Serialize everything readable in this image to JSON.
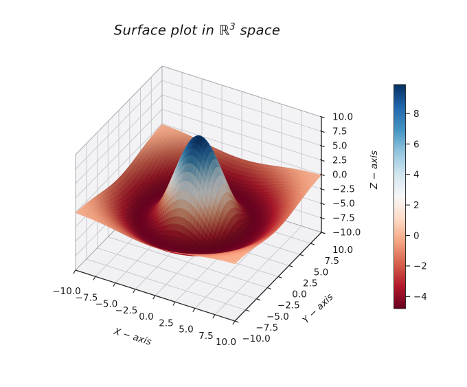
{
  "figure": {
    "background": "#ffffff"
  },
  "title": {
    "prefix": "Surface plot in ",
    "set_symbol": "ℝ",
    "exponent": "3",
    "suffix": " space",
    "full": "Surface plot in ℝ³ space"
  },
  "chart_data": {
    "type": "surface",
    "title": "Surface plot in ℝ³ space",
    "xlabel": "X − axis",
    "ylabel": "Y − axis",
    "zlabel": "Z − axis",
    "x_range": [
      -10,
      10
    ],
    "y_range": [
      -10,
      10
    ],
    "z_range": [
      -10,
      10
    ],
    "x_ticks": [
      -10,
      -7.5,
      -5,
      -2.5,
      0,
      2.5,
      5,
      7.5,
      10
    ],
    "x_tick_labels": [
      "−10.0",
      "−7.5",
      "−5.0",
      "−2.5",
      "0.0",
      "2.5",
      "5.0",
      "7.5",
      "10.0"
    ],
    "y_ticks": [
      -10,
      -7.5,
      -5,
      -2.5,
      0,
      2.5,
      5,
      7.5,
      10
    ],
    "y_tick_labels": [
      "−10.0",
      "−7.5",
      "−5.0",
      "−2.5",
      "0.0",
      "2.5",
      "5.0",
      "7.5",
      "10.0"
    ],
    "z_ticks": [
      -10,
      -7.5,
      -5,
      -2.5,
      0,
      2.5,
      5,
      7.5,
      10
    ],
    "z_tick_labels": [
      "−10.0",
      "−7.5",
      "−5.0",
      "−2.5",
      "0.0",
      "2.5",
      "5.0",
      "7.5",
      "10.0"
    ],
    "grid": true,
    "view": {
      "elev": 30,
      "azim": -60
    },
    "surface": {
      "model": "radial ricker (mexican-hat) peak centered at origin",
      "formula": "z(r) = A·(1 − r²/(2σ²))·exp(−r²/(kσ²)),  r² = x² + y²",
      "amplitude": 9.9,
      "sigma": 2.55,
      "k": 4.2,
      "z_peak": 9.9,
      "z_trough": -4.75,
      "grid_points": 56
    },
    "colormap": {
      "name": "RdBu",
      "stops": [
        "#67001f",
        "#b2182b",
        "#d6604d",
        "#f4a582",
        "#fddbc7",
        "#f7f7f7",
        "#d1e5f0",
        "#92c5de",
        "#4393c3",
        "#2166ac",
        "#053061"
      ]
    },
    "colorbar": {
      "vmin": -4.8,
      "vmax": 9.9,
      "ticks": [
        8,
        6,
        4,
        2,
        0,
        -2,
        -4
      ],
      "tick_labels": [
        "8",
        "6",
        "4",
        "2",
        "0",
        "−2",
        "−4"
      ]
    }
  }
}
